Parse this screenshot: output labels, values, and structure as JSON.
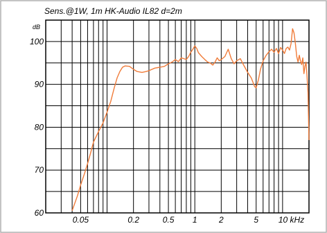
{
  "chart_data": {
    "type": "line",
    "title": "Sens.@1W, 1m HK-Audio IL82  d=2m",
    "ylabel": "dB",
    "xlabel": "",
    "x_scale": "log",
    "xlim": [
      0.02,
      20
    ],
    "ylim": [
      60,
      105
    ],
    "grid": true,
    "y_ticks": [
      {
        "value": 60,
        "label": "60"
      },
      {
        "value": 70,
        "label": "70"
      },
      {
        "value": 80,
        "label": "80"
      },
      {
        "value": 90,
        "label": "90"
      },
      {
        "value": 100,
        "label": "100"
      }
    ],
    "x_ticks": [
      {
        "value": 0.05,
        "label": "0.05"
      },
      {
        "value": 0.2,
        "label": "0.2"
      },
      {
        "value": 0.5,
        "label": "0.5"
      },
      {
        "value": 1,
        "label": "1"
      },
      {
        "value": 2,
        "label": "2"
      },
      {
        "value": 5,
        "label": "5"
      },
      {
        "value": 10,
        "label": "10 kHz"
      }
    ],
    "colors": {
      "curve": "#f07c3a",
      "grid": "#000000",
      "frame": "#000000",
      "outer_border": "#b0b0b0"
    },
    "series": [
      {
        "name": "",
        "x": [
          0.04,
          0.046,
          0.05,
          0.055,
          0.06,
          0.065,
          0.07,
          0.08,
          0.09,
          0.1,
          0.11,
          0.12,
          0.13,
          0.14,
          0.15,
          0.16,
          0.18,
          0.2,
          0.22,
          0.25,
          0.28,
          0.3,
          0.35,
          0.4,
          0.45,
          0.5,
          0.55,
          0.6,
          0.65,
          0.7,
          0.75,
          0.8,
          0.85,
          0.9,
          0.95,
          1.0,
          1.05,
          1.1,
          1.2,
          1.3,
          1.4,
          1.5,
          1.6,
          1.7,
          1.8,
          1.9,
          2.0,
          2.2,
          2.4,
          2.6,
          2.8,
          3.0,
          3.3,
          3.6,
          4.0,
          4.4,
          4.8,
          5.0,
          5.3,
          5.6,
          6.0,
          6.5,
          7.0,
          7.5,
          8.0,
          8.5,
          9.0,
          9.5,
          10.0,
          10.5,
          11.0,
          11.5,
          12.0,
          12.5,
          13.0,
          13.5,
          14.0,
          14.5,
          15.0,
          15.5,
          16.0,
          16.5,
          17.0,
          17.5,
          18.0,
          18.5,
          19.0,
          19.5,
          20.0
        ],
        "y": [
          60.5,
          64,
          66.5,
          69,
          71.5,
          74,
          76.5,
          79,
          81,
          83.5,
          86,
          89,
          91.5,
          93,
          94,
          94.3,
          94.2,
          93.5,
          93,
          92.8,
          93,
          93.2,
          93.8,
          94,
          94.2,
          94.8,
          95.2,
          95.8,
          95.3,
          96.2,
          96,
          95.8,
          96.5,
          97.5,
          98.2,
          99,
          98.4,
          97.4,
          96.5,
          95.8,
          95.2,
          95,
          94.5,
          95.2,
          96.2,
          95.5,
          95.8,
          96.5,
          98.2,
          96,
          94.8,
          95.5,
          96,
          94.5,
          92.8,
          91.5,
          89.5,
          89.2,
          91,
          93.5,
          95.5,
          96.8,
          97.6,
          98.2,
          97.5,
          98.4,
          97.2,
          98.6,
          98,
          97.2,
          98.4,
          98.7,
          98,
          99.5,
          103,
          102,
          99.5,
          96.5,
          95.2,
          96.8,
          95.5,
          94.6,
          96.2,
          92.5,
          94.2,
          95.2,
          91.8,
          88,
          77
        ]
      }
    ]
  }
}
